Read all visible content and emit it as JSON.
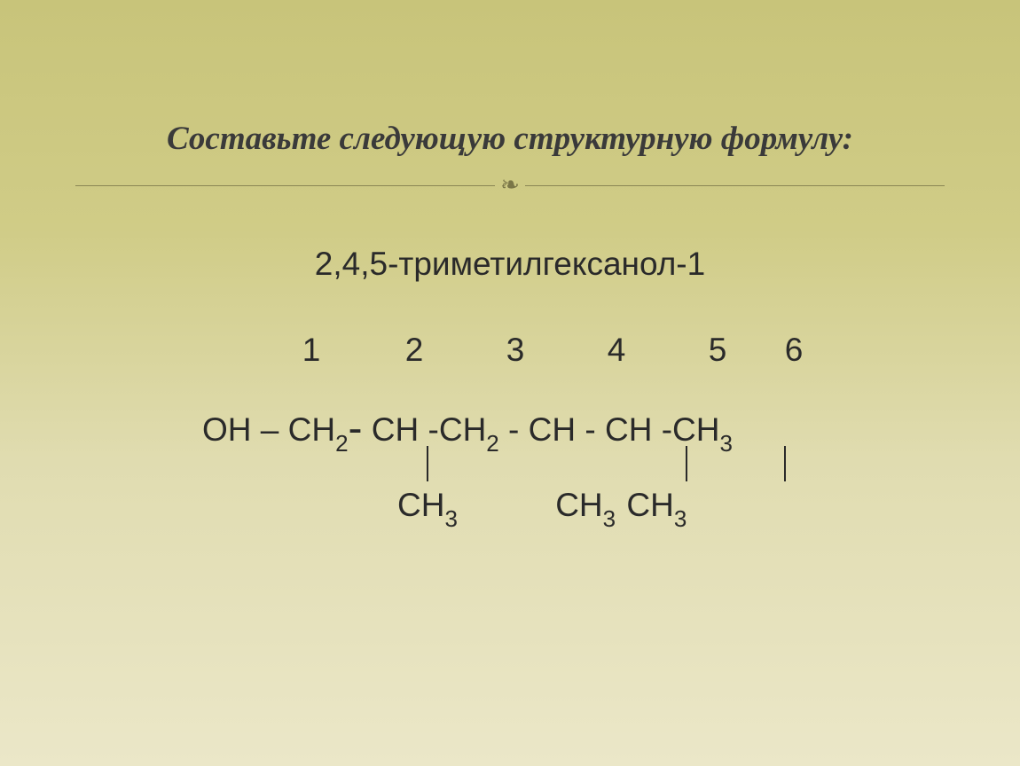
{
  "slide": {
    "title": "Составьте следующую структурную формулу:",
    "compound_name": "2,4,5-триметилгексанол-1",
    "carbon_labels": [
      "1",
      "2",
      "3",
      "4",
      "5",
      "6"
    ],
    "chain": {
      "g0": "OH – CH",
      "sub0": "2",
      "dash_big": "-",
      "g1": " CH -CH",
      "sub1": "2",
      "g2": " - CH - CH -CH",
      "sub2": "3"
    },
    "substituents": {
      "s1a": "CH",
      "s1b": "3",
      "s2a": "CH",
      "s2b": "3",
      "s3a": " CH",
      "s3b": "3"
    },
    "ornament": "❧"
  },
  "colors": {
    "bg_top": "#c8c47a",
    "bg_bottom": "#ebe7c8",
    "text": "#2a2a2a",
    "title_text": "#3a3a3a",
    "divider": "#8a8654",
    "ornament": "#7a7648"
  },
  "typography": {
    "title_fontsize": 37,
    "body_fontsize": 37,
    "sub_fontsize": 26,
    "title_family": "Georgia",
    "body_family": "Arial"
  }
}
